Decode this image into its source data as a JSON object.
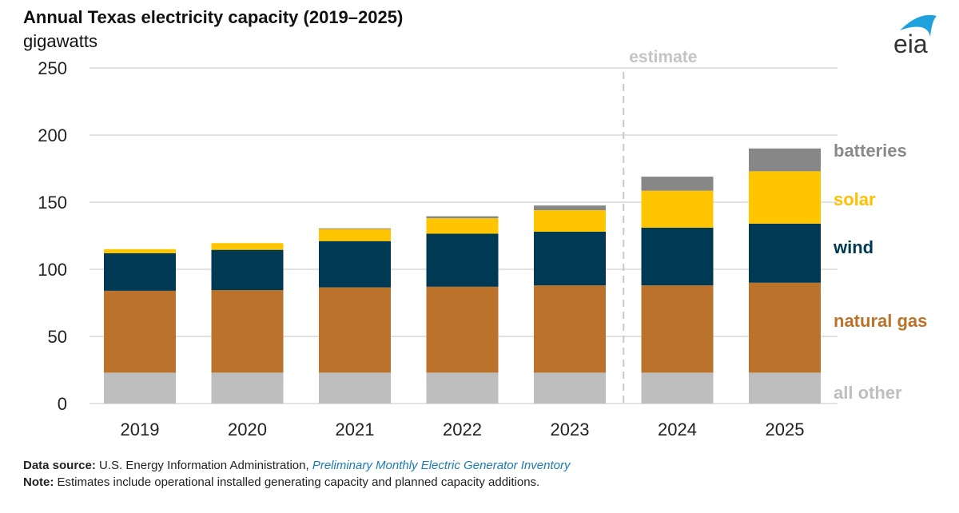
{
  "header": {
    "title": "Annual Texas electricity capacity (2019–2025)",
    "units": "gigawatts",
    "logo_text": "eia"
  },
  "footer": {
    "source_label": "Data source:",
    "source_text": "U.S. Energy Information Administration,",
    "source_link": "Preliminary Monthly Electric Generator Inventory",
    "note_label": "Note:",
    "note_text": "Estimates include operational installed generating capacity and planned capacity additions."
  },
  "chart_data": {
    "type": "bar",
    "stacked": true,
    "title": "Annual Texas electricity capacity (2019–2025)",
    "xlabel": "",
    "ylabel": "gigawatts",
    "ylim": [
      0,
      250
    ],
    "yticks": [
      0,
      50,
      100,
      150,
      200,
      250
    ],
    "grid": true,
    "legend_placement": "right (inline labels)",
    "categories": [
      "2019",
      "2020",
      "2021",
      "2022",
      "2023",
      "2024",
      "2025"
    ],
    "annotation": {
      "label": "estimate",
      "divider_between": [
        "2023",
        "2024"
      ]
    },
    "series": [
      {
        "name": "all other",
        "color": "#bebebe",
        "values": [
          23,
          23,
          23,
          23,
          23,
          23,
          23
        ]
      },
      {
        "name": "natural gas",
        "color": "#bb722a",
        "values": [
          61,
          61.5,
          63.5,
          64,
          65,
          65,
          67
        ]
      },
      {
        "name": "wind",
        "color": "#003953",
        "values": [
          28,
          30,
          34.5,
          39.5,
          40,
          43,
          44
        ]
      },
      {
        "name": "solar",
        "color": "#ffc600",
        "values": [
          3,
          5,
          9,
          11.5,
          16,
          27.5,
          39
        ]
      },
      {
        "name": "batteries",
        "color": "#878787",
        "values": [
          0,
          0,
          0.5,
          1.5,
          3.5,
          10.5,
          17
        ]
      }
    ],
    "legend_colors": {
      "batteries": "#8a8a8a",
      "solar": "#ffc000",
      "wind": "#003953",
      "natural gas": "#bb722a",
      "all other": "#bfbfbf"
    }
  }
}
